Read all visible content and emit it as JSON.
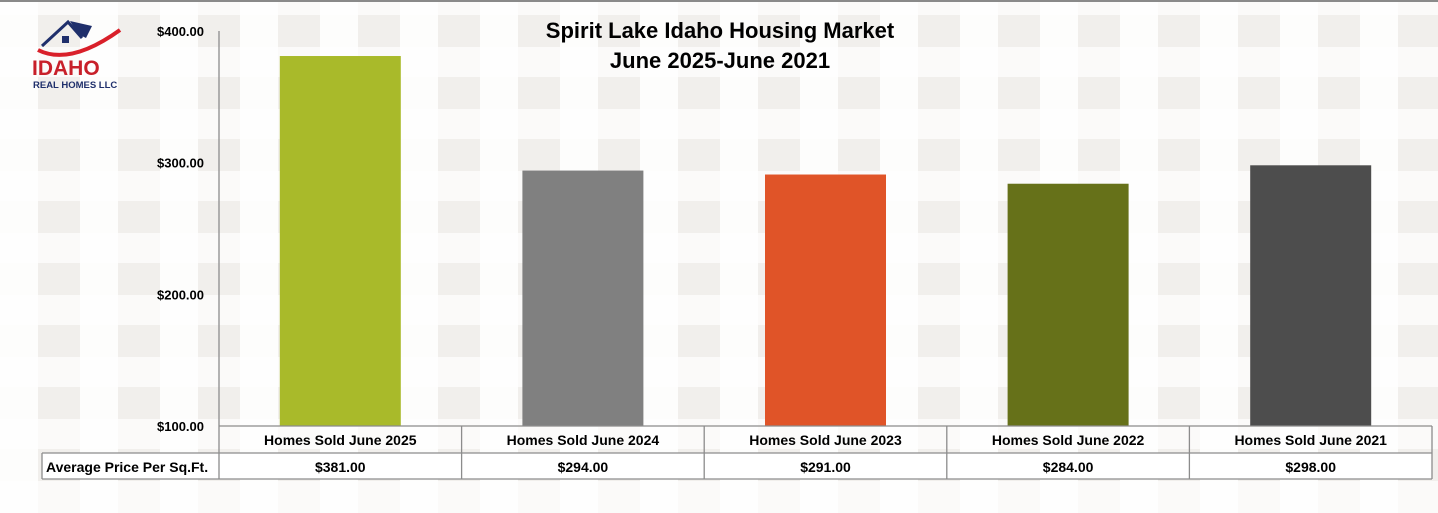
{
  "logo": {
    "name": "IDAHO",
    "sub": "REAL HOMES LLC"
  },
  "chart_data": {
    "type": "bar",
    "title": [
      "Spirit Lake Idaho Housing Market",
      "June 2025-June 2021"
    ],
    "categories": [
      "Homes Sold June 2025",
      "Homes Sold June 2024",
      "Homes Sold June 2023",
      "Homes Sold June 2022",
      "Homes Sold June 2021"
    ],
    "series": [
      {
        "name": "Average Price Per Sq.Ft.",
        "values": [
          381,
          294,
          291,
          284,
          298
        ]
      }
    ],
    "value_labels": [
      "$381.00",
      "$294.00",
      "$291.00",
      "$284.00",
      "$298.00"
    ],
    "ylim": [
      100,
      400
    ],
    "yticks": [
      100,
      200,
      300,
      400
    ],
    "ytick_labels": [
      "$100.00",
      "$200.00",
      "$300.00",
      "$400.00"
    ],
    "colors": [
      "#A9BA2A",
      "#808080",
      "#E05428",
      "#667119",
      "#4D4D4D"
    ],
    "grid": false,
    "legend": "data-table-bottom"
  }
}
